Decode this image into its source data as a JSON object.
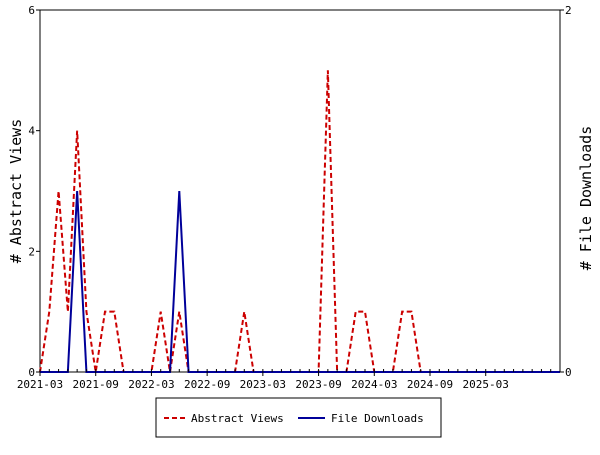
{
  "chart_data": {
    "type": "line",
    "title": "",
    "xlabel": "",
    "ylabel_left": "# Abstract Views",
    "ylabel_right": "# File Downloads",
    "x_tick_labels": [
      "2021-03",
      "2021-09",
      "2022-03",
      "2022-09",
      "2023-03",
      "2023-09",
      "2024-03",
      "2024-09",
      "2025-03"
    ],
    "x_range_months": [
      "2021-03",
      "2025-11"
    ],
    "y_left": {
      "min": 0,
      "max": 6,
      "ticks": [
        "0",
        "2",
        "4",
        "6"
      ]
    },
    "y_right": {
      "min": 0,
      "max": 2,
      "ticks": [
        "0",
        "2"
      ]
    },
    "grid": false,
    "legend_position": "bottom",
    "series": [
      {
        "name": "Abstract Views",
        "axis": "left",
        "style": "dashed",
        "color": "#cc0000",
        "points": [
          [
            "2021-03",
            0
          ],
          [
            "2021-04",
            1
          ],
          [
            "2021-05",
            3
          ],
          [
            "2021-06",
            1
          ],
          [
            "2021-07",
            4
          ],
          [
            "2021-08",
            1
          ],
          [
            "2021-09",
            0
          ],
          [
            "2021-10",
            1
          ],
          [
            "2021-11",
            1
          ],
          [
            "2021-12",
            0
          ],
          [
            "2022-01",
            0
          ],
          [
            "2022-02",
            0
          ],
          [
            "2022-03",
            0
          ],
          [
            "2022-04",
            1
          ],
          [
            "2022-05",
            0
          ],
          [
            "2022-06",
            1
          ],
          [
            "2022-07",
            0
          ],
          [
            "2022-08",
            0
          ],
          [
            "2022-09",
            0
          ],
          [
            "2022-10",
            0
          ],
          [
            "2022-11",
            0
          ],
          [
            "2022-12",
            0
          ],
          [
            "2023-01",
            1
          ],
          [
            "2023-02",
            0
          ],
          [
            "2023-03",
            0
          ],
          [
            "2023-04",
            0
          ],
          [
            "2023-05",
            0
          ],
          [
            "2023-06",
            0
          ],
          [
            "2023-07",
            0
          ],
          [
            "2023-08",
            0
          ],
          [
            "2023-09",
            0
          ],
          [
            "2023-10",
            5
          ],
          [
            "2023-11",
            0
          ],
          [
            "2023-12",
            0
          ],
          [
            "2024-01",
            1
          ],
          [
            "2024-02",
            1
          ],
          [
            "2024-03",
            0
          ],
          [
            "2024-04",
            0
          ],
          [
            "2024-05",
            0
          ],
          [
            "2024-06",
            1
          ],
          [
            "2024-07",
            1
          ],
          [
            "2024-08",
            0
          ],
          [
            "2024-09",
            0
          ],
          [
            "2024-10",
            0
          ],
          [
            "2024-11",
            0
          ],
          [
            "2024-12",
            0
          ],
          [
            "2025-01",
            0
          ],
          [
            "2025-02",
            0
          ],
          [
            "2025-03",
            0
          ],
          [
            "2025-04",
            0
          ],
          [
            "2025-05",
            0
          ],
          [
            "2025-06",
            0
          ],
          [
            "2025-07",
            0
          ],
          [
            "2025-08",
            0
          ],
          [
            "2025-09",
            0
          ],
          [
            "2025-10",
            0
          ],
          [
            "2025-11",
            0
          ]
        ]
      },
      {
        "name": "File Downloads",
        "axis": "right",
        "style": "solid",
        "color": "#000099",
        "points": [
          [
            "2021-03",
            0
          ],
          [
            "2021-04",
            0
          ],
          [
            "2021-05",
            0
          ],
          [
            "2021-06",
            0
          ],
          [
            "2021-07",
            1
          ],
          [
            "2021-08",
            0
          ],
          [
            "2021-09",
            0
          ],
          [
            "2021-10",
            0
          ],
          [
            "2021-11",
            0
          ],
          [
            "2021-12",
            0
          ],
          [
            "2022-01",
            0
          ],
          [
            "2022-02",
            0
          ],
          [
            "2022-03",
            0
          ],
          [
            "2022-04",
            0
          ],
          [
            "2022-05",
            0
          ],
          [
            "2022-06",
            1
          ],
          [
            "2022-07",
            0
          ],
          [
            "2022-08",
            0
          ],
          [
            "2022-09",
            0
          ],
          [
            "2022-10",
            0
          ],
          [
            "2022-11",
            0
          ],
          [
            "2022-12",
            0
          ],
          [
            "2023-01",
            0
          ],
          [
            "2023-02",
            0
          ],
          [
            "2023-03",
            0
          ],
          [
            "2023-04",
            0
          ],
          [
            "2023-05",
            0
          ],
          [
            "2023-06",
            0
          ],
          [
            "2023-07",
            0
          ],
          [
            "2023-08",
            0
          ],
          [
            "2023-09",
            0
          ],
          [
            "2023-10",
            0
          ],
          [
            "2023-11",
            0
          ],
          [
            "2023-12",
            0
          ],
          [
            "2024-01",
            0
          ],
          [
            "2024-02",
            0
          ],
          [
            "2024-03",
            0
          ],
          [
            "2024-04",
            0
          ],
          [
            "2024-05",
            0
          ],
          [
            "2024-06",
            0
          ],
          [
            "2024-07",
            0
          ],
          [
            "2024-08",
            0
          ],
          [
            "2024-09",
            0
          ],
          [
            "2024-10",
            0
          ],
          [
            "2024-11",
            0
          ],
          [
            "2024-12",
            0
          ],
          [
            "2025-01",
            0
          ],
          [
            "2025-02",
            0
          ],
          [
            "2025-03",
            0
          ],
          [
            "2025-04",
            0
          ],
          [
            "2025-05",
            0
          ],
          [
            "2025-06",
            0
          ],
          [
            "2025-07",
            0
          ],
          [
            "2025-08",
            0
          ],
          [
            "2025-09",
            0
          ],
          [
            "2025-10",
            0
          ],
          [
            "2025-11",
            0
          ]
        ]
      }
    ]
  },
  "legend": {
    "items": [
      {
        "label": "Abstract Views",
        "color": "#cc0000",
        "style": "dashed"
      },
      {
        "label": "File Downloads",
        "color": "#000099",
        "style": "solid"
      }
    ]
  }
}
